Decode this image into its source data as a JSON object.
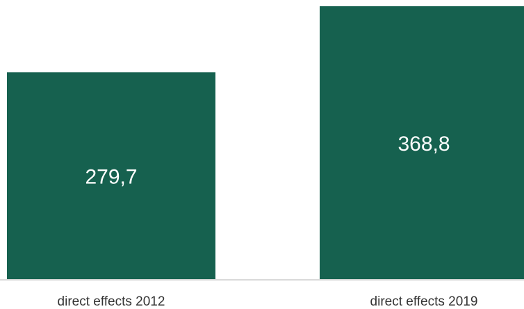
{
  "chart_data": {
    "type": "bar",
    "categories": [
      "direct effects 2012",
      "direct effects 2019"
    ],
    "values": [
      279.7,
      368.8
    ],
    "value_labels": [
      "279,7",
      "368,8"
    ],
    "ylim": [
      0,
      368.8
    ],
    "grid": false,
    "legend": "none",
    "title": "",
    "xlabel": "",
    "ylabel": "",
    "colors": {
      "bar": "#16614F",
      "label": "#ffffff",
      "axis": "#d9d9d9"
    }
  }
}
